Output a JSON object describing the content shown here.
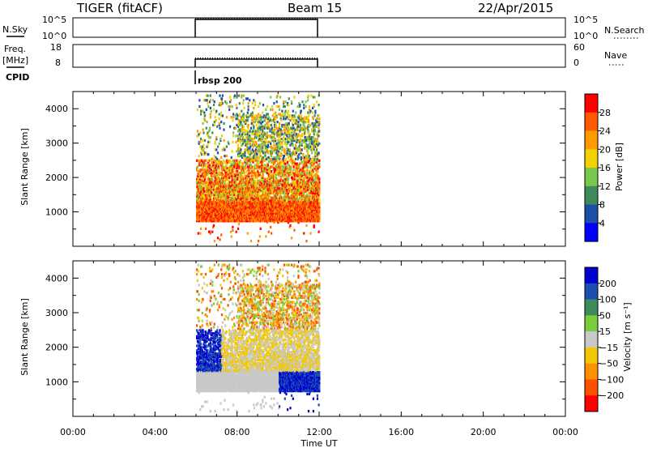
{
  "header": {
    "station": "TIGER (fitACF)",
    "beam": "Beam 15",
    "date": "22/Apr/2015"
  },
  "panels": {
    "nsky": {
      "label": "N.Sky",
      "left_ticks": [
        "10^5",
        "10^0"
      ],
      "right_ticks": [
        "10^5",
        "10^0"
      ],
      "right_label": "N.Search"
    },
    "freq": {
      "label_line1": "Freq.",
      "label_line2": "[MHz]",
      "left_ticks": [
        "18",
        "8"
      ],
      "right_ticks": [
        "60",
        "0"
      ],
      "right_label": "Nave"
    },
    "cpid": {
      "label": "CPID",
      "program": "rbsp 200"
    }
  },
  "chart_data": [
    {
      "type": "heatmap",
      "name": "power",
      "ylabel": "Slant Range [km]",
      "yticks": [
        "1000",
        "2000",
        "3000",
        "4000"
      ],
      "ylim": [
        0,
        4500
      ],
      "xlim": [
        "00:00",
        "24:00"
      ],
      "colorbar_label": "Power [dB]",
      "colorbar_ticks": [
        "4",
        "8",
        "12",
        "16",
        "20",
        "24",
        "28"
      ],
      "colors": [
        "#0000ff",
        "#1e4fa8",
        "#3f8a5a",
        "#79c84d",
        "#f2d200",
        "#ff9a00",
        "#ff5a00",
        "#ff0000"
      ]
    },
    {
      "type": "heatmap",
      "name": "velocity",
      "ylabel": "Slant Range [km]",
      "yticks": [
        "1000",
        "2000",
        "3000",
        "4000"
      ],
      "ylim": [
        0,
        4500
      ],
      "xlim": [
        "00:00",
        "24:00"
      ],
      "colorbar_label": "Velocity [m s⁻¹]",
      "colorbar_ticks": [
        "200",
        "100",
        "50",
        "15",
        "−15",
        "−50",
        "−100",
        "−200"
      ],
      "colors": [
        "#0000d0",
        "#1d4fb0",
        "#3d8c5c",
        "#7ccd3c",
        "#c8c8c8",
        "#f2c800",
        "#ff9000",
        "#ff5000",
        "#ff0000"
      ]
    }
  ],
  "time_axis": {
    "ticks": [
      "00:00",
      "04:00",
      "08:00",
      "12:00",
      "16:00",
      "20:00",
      "00:00"
    ],
    "xlabel": "Time UT",
    "data_start": "06:00",
    "data_end": "12:00"
  }
}
